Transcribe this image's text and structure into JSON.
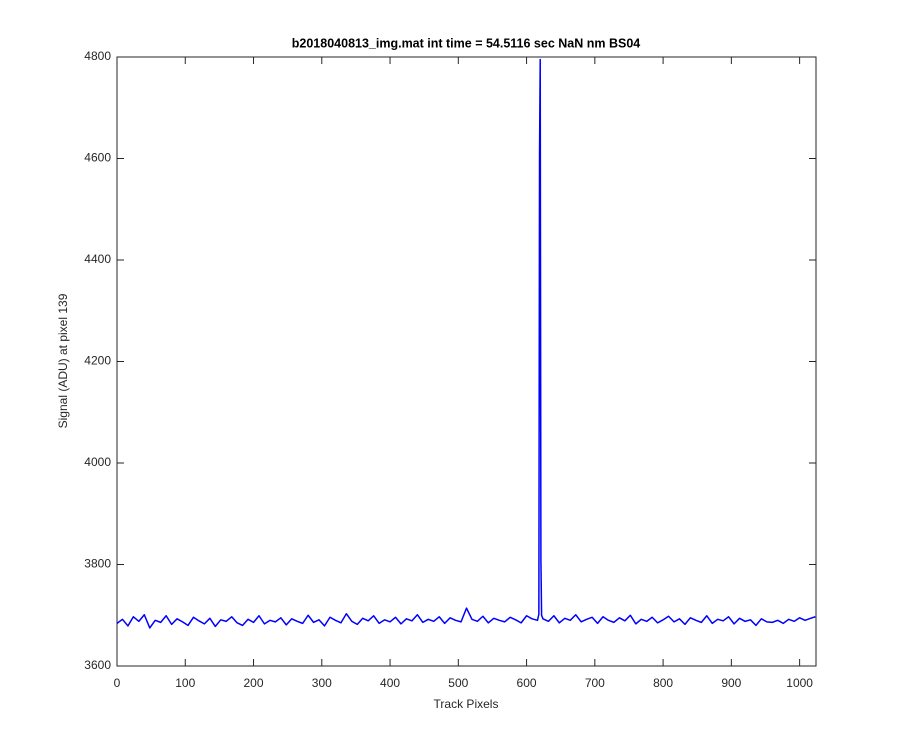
{
  "chart_data": {
    "type": "line",
    "title": "b2018040813_img.mat int time = 54.5116 sec   NaN nm BS04",
    "xlabel": "Track Pixels",
    "ylabel": "Signal (ADU) at pixel 139",
    "xlim": [
      0,
      1024
    ],
    "ylim": [
      3600,
      4800
    ],
    "xticks": [
      0,
      100,
      200,
      300,
      400,
      500,
      600,
      700,
      800,
      900,
      1000
    ],
    "yticks": [
      3600,
      3800,
      4000,
      4200,
      4400,
      4600,
      4800
    ],
    "color": "#0000ff",
    "x": [
      0,
      8,
      16,
      24,
      32,
      40,
      48,
      56,
      64,
      72,
      80,
      88,
      96,
      104,
      112,
      120,
      128,
      136,
      144,
      152,
      160,
      168,
      176,
      184,
      192,
      200,
      208,
      216,
      224,
      232,
      240,
      248,
      256,
      264,
      272,
      280,
      288,
      296,
      304,
      312,
      320,
      328,
      336,
      344,
      352,
      360,
      368,
      376,
      384,
      392,
      400,
      408,
      416,
      424,
      432,
      440,
      448,
      456,
      464,
      472,
      480,
      488,
      496,
      504,
      512,
      520,
      528,
      536,
      544,
      552,
      560,
      568,
      576,
      584,
      592,
      600,
      608,
      616,
      618,
      619,
      620,
      621,
      622,
      624,
      632,
      640,
      648,
      656,
      664,
      672,
      680,
      688,
      696,
      704,
      712,
      720,
      728,
      736,
      744,
      752,
      760,
      768,
      776,
      784,
      792,
      800,
      808,
      816,
      824,
      832,
      840,
      848,
      856,
      864,
      872,
      880,
      888,
      896,
      904,
      912,
      920,
      928,
      936,
      944,
      952,
      960,
      968,
      976,
      984,
      992,
      1000,
      1008,
      1016,
      1023
    ],
    "values": [
      3684,
      3692,
      3679,
      3697,
      3688,
      3701,
      3675,
      3690,
      3686,
      3699,
      3682,
      3693,
      3687,
      3680,
      3696,
      3689,
      3683,
      3694,
      3678,
      3691,
      3688,
      3697,
      3685,
      3680,
      3692,
      3686,
      3699,
      3683,
      3690,
      3687,
      3695,
      3681,
      3693,
      3688,
      3684,
      3700,
      3686,
      3691,
      3679,
      3696,
      3690,
      3685,
      3703,
      3688,
      3682,
      3694,
      3689,
      3699,
      3684,
      3691,
      3687,
      3696,
      3683,
      3693,
      3689,
      3701,
      3686,
      3692,
      3688,
      3697,
      3684,
      3695,
      3690,
      3687,
      3714,
      3692,
      3688,
      3698,
      3685,
      3694,
      3690,
      3687,
      3696,
      3691,
      3685,
      3699,
      3693,
      3690,
      3702,
      4610,
      4795,
      3810,
      3700,
      3693,
      3688,
      3699,
      3685,
      3694,
      3690,
      3701,
      3687,
      3692,
      3696,
      3684,
      3697,
      3690,
      3686,
      3695,
      3689,
      3700,
      3683,
      3692,
      3688,
      3696,
      3685,
      3691,
      3698,
      3687,
      3693,
      3682,
      3695,
      3690,
      3686,
      3699,
      3684,
      3692,
      3689,
      3697,
      3683,
      3694,
      3688,
      3691,
      3680,
      3693,
      3687,
      3686,
      3690,
      3684,
      3692,
      3688,
      3695,
      3690,
      3694,
      3697
    ]
  }
}
